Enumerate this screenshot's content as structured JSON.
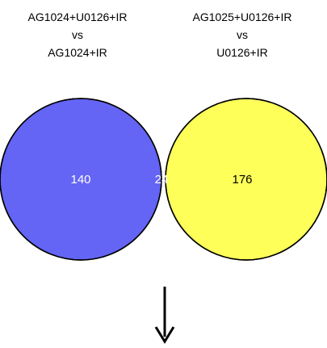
{
  "venn": {
    "left_set": {
      "label_lines": [
        "AG1024+U0126+IR",
        "vs",
        "AG1024+IR"
      ],
      "count": "140",
      "color": "#6464f5"
    },
    "right_set": {
      "label_lines": [
        "AG1025+U0126+IR",
        "vs",
        "U0126+IR"
      ],
      "count": "176",
      "color": "#ffff5a"
    },
    "intersection": {
      "count": "24",
      "color": "#b8b48c"
    }
  },
  "arrow": {
    "icon": "down-arrow-icon",
    "color": "#000000"
  }
}
